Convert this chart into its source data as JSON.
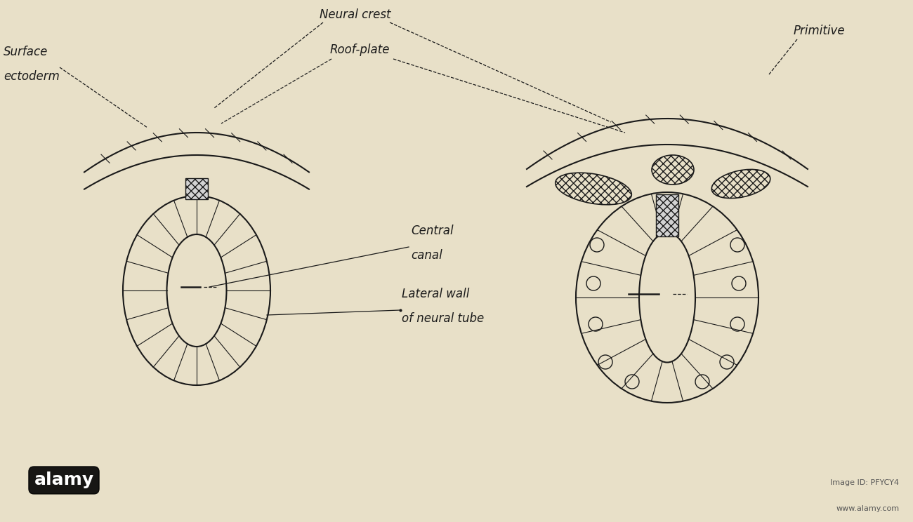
{
  "bg_color": "#e8e0c8",
  "line_color": "#1a1a1a",
  "labels": {
    "surface_ectoderm_1": "Surface",
    "surface_ectoderm_2": "ectoderm",
    "neural_crest": "Neural crest",
    "roof_plate": "Roof-plate",
    "primitive": "Primitive",
    "central_canal_1": "Central",
    "central_canal_2": "canal",
    "lateral_wall_1": "Lateral wall",
    "lateral_wall_2": "of neural tube"
  }
}
